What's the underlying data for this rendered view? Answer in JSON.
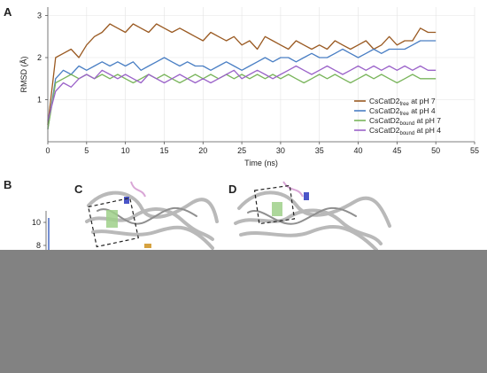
{
  "panels": {
    "a": "A",
    "b": "B",
    "c": "C",
    "d": "D"
  },
  "chart_data": {
    "type": "line",
    "title": "",
    "xlabel": "Time (ns)",
    "ylabel": "RMSD (Å)",
    "xlim": [
      0,
      55
    ],
    "ylim": [
      0,
      3.2
    ],
    "xticks": [
      0,
      5,
      10,
      15,
      20,
      25,
      30,
      35,
      40,
      45,
      50,
      55
    ],
    "yticks": [
      1,
      2,
      3
    ],
    "grid": true,
    "legend_position": "bottom-right",
    "series": [
      {
        "name": "CsCatD2free at pH 7",
        "name_main": "CsCatD2",
        "name_sub": "free",
        "name_suffix": " at pH 7",
        "color": "#9a5a22",
        "x": [
          0,
          1,
          2,
          3,
          4,
          5,
          6,
          7,
          8,
          9,
          10,
          11,
          12,
          13,
          14,
          15,
          16,
          17,
          18,
          19,
          20,
          21,
          22,
          23,
          24,
          25,
          26,
          27,
          28,
          29,
          30,
          31,
          32,
          33,
          34,
          35,
          36,
          37,
          38,
          39,
          40,
          41,
          42,
          43,
          44,
          45,
          46,
          47,
          48,
          49,
          50
        ],
        "y": [
          0.4,
          2.0,
          2.1,
          2.2,
          2.0,
          2.3,
          2.5,
          2.6,
          2.8,
          2.7,
          2.6,
          2.8,
          2.7,
          2.6,
          2.8,
          2.7,
          2.6,
          2.7,
          2.6,
          2.5,
          2.4,
          2.6,
          2.5,
          2.4,
          2.5,
          2.3,
          2.4,
          2.2,
          2.5,
          2.4,
          2.3,
          2.2,
          2.4,
          2.3,
          2.2,
          2.3,
          2.2,
          2.4,
          2.3,
          2.2,
          2.3,
          2.4,
          2.2,
          2.3,
          2.5,
          2.3,
          2.4,
          2.4,
          2.7,
          2.6,
          2.6
        ]
      },
      {
        "name": "CsCatD2free at pH 4",
        "name_main": "CsCatD2",
        "name_sub": "free",
        "name_suffix": " at pH 4",
        "color": "#4a7fc4",
        "x": [
          0,
          1,
          2,
          3,
          4,
          5,
          6,
          7,
          8,
          9,
          10,
          11,
          12,
          13,
          14,
          15,
          16,
          17,
          18,
          19,
          20,
          21,
          22,
          23,
          24,
          25,
          26,
          27,
          28,
          29,
          30,
          31,
          32,
          33,
          34,
          35,
          36,
          37,
          38,
          39,
          40,
          41,
          42,
          43,
          44,
          45,
          46,
          47,
          48,
          49,
          50
        ],
        "y": [
          0.3,
          1.5,
          1.7,
          1.6,
          1.8,
          1.7,
          1.8,
          1.9,
          1.8,
          1.9,
          1.8,
          1.9,
          1.7,
          1.8,
          1.9,
          2.0,
          1.9,
          1.8,
          1.9,
          1.8,
          1.8,
          1.7,
          1.8,
          1.9,
          1.8,
          1.7,
          1.8,
          1.9,
          2.0,
          1.9,
          2.0,
          2.0,
          1.9,
          2.0,
          2.1,
          2.0,
          2.0,
          2.1,
          2.2,
          2.1,
          2.0,
          2.1,
          2.2,
          2.1,
          2.2,
          2.2,
          2.2,
          2.3,
          2.4,
          2.4,
          2.4
        ]
      },
      {
        "name": "CsCatD2bound at pH 7",
        "name_main": "CsCatD2",
        "name_sub": "bound",
        "name_suffix": " at pH 7",
        "color": "#7ab55c",
        "x": [
          0,
          1,
          2,
          3,
          4,
          5,
          6,
          7,
          8,
          9,
          10,
          11,
          12,
          13,
          14,
          15,
          16,
          17,
          18,
          19,
          20,
          21,
          22,
          23,
          24,
          25,
          26,
          27,
          28,
          29,
          30,
          31,
          32,
          33,
          34,
          35,
          36,
          37,
          38,
          39,
          40,
          41,
          42,
          43,
          44,
          45,
          46,
          47,
          48,
          49,
          50
        ],
        "y": [
          0.3,
          1.4,
          1.5,
          1.6,
          1.5,
          1.6,
          1.5,
          1.6,
          1.5,
          1.6,
          1.5,
          1.4,
          1.5,
          1.6,
          1.5,
          1.6,
          1.5,
          1.4,
          1.5,
          1.6,
          1.5,
          1.6,
          1.5,
          1.6,
          1.5,
          1.6,
          1.5,
          1.6,
          1.5,
          1.6,
          1.5,
          1.6,
          1.5,
          1.4,
          1.5,
          1.6,
          1.5,
          1.6,
          1.5,
          1.4,
          1.5,
          1.6,
          1.5,
          1.6,
          1.5,
          1.4,
          1.5,
          1.6,
          1.5,
          1.5,
          1.5
        ]
      },
      {
        "name": "CsCatD2bound at pH 4",
        "name_main": "CsCatD2",
        "name_sub": "bound",
        "name_suffix": " at pH 4",
        "color": "#9b63c9",
        "x": [
          0,
          1,
          2,
          3,
          4,
          5,
          6,
          7,
          8,
          9,
          10,
          11,
          12,
          13,
          14,
          15,
          16,
          17,
          18,
          19,
          20,
          21,
          22,
          23,
          24,
          25,
          26,
          27,
          28,
          29,
          30,
          31,
          32,
          33,
          34,
          35,
          36,
          37,
          38,
          39,
          40,
          41,
          42,
          43,
          44,
          45,
          46,
          47,
          48,
          49,
          50
        ],
        "y": [
          0.5,
          1.2,
          1.4,
          1.3,
          1.5,
          1.6,
          1.5,
          1.7,
          1.6,
          1.5,
          1.6,
          1.5,
          1.4,
          1.6,
          1.5,
          1.4,
          1.5,
          1.6,
          1.5,
          1.4,
          1.5,
          1.4,
          1.5,
          1.6,
          1.7,
          1.5,
          1.6,
          1.7,
          1.6,
          1.5,
          1.6,
          1.7,
          1.8,
          1.7,
          1.6,
          1.7,
          1.8,
          1.7,
          1.6,
          1.7,
          1.8,
          1.7,
          1.8,
          1.7,
          1.8,
          1.7,
          1.8,
          1.7,
          1.8,
          1.7,
          1.7
        ]
      }
    ]
  },
  "panel_b_inset": {
    "yticks": [
      "10",
      "8"
    ],
    "color": "#3a5fbf"
  }
}
